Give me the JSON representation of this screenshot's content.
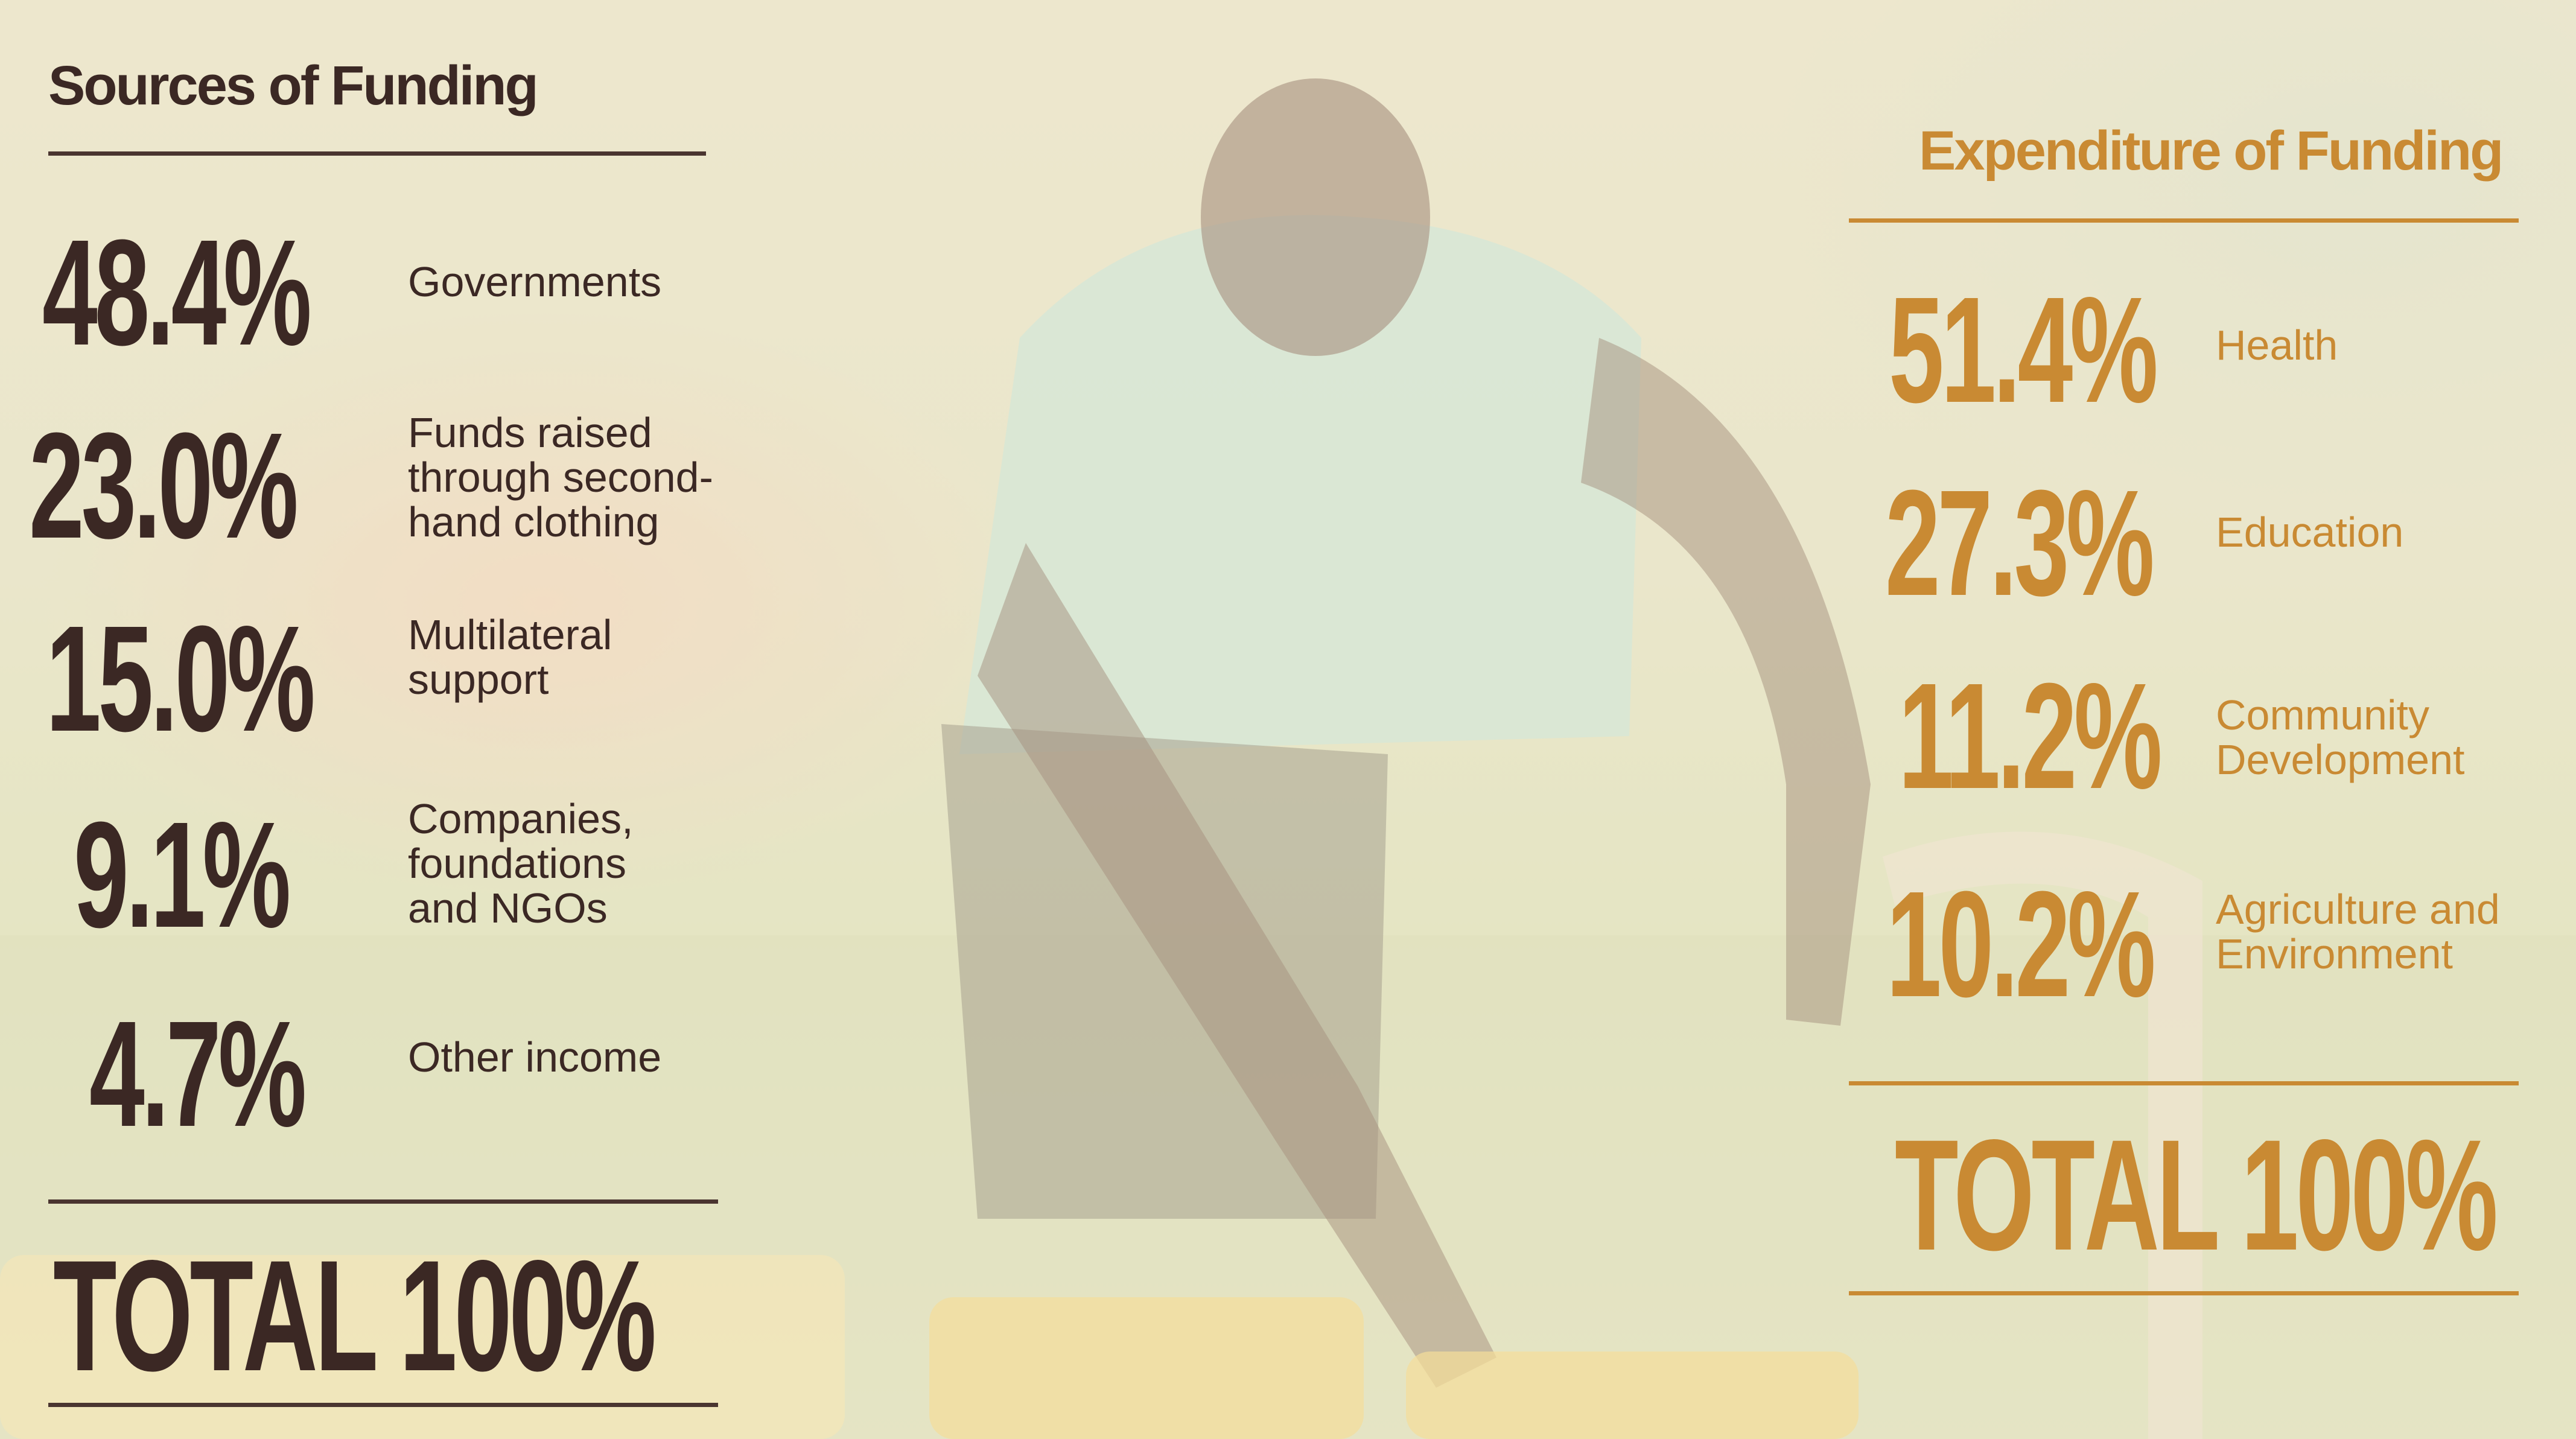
{
  "sources": {
    "heading": "Sources of Funding",
    "items": [
      {
        "value": "48.4%",
        "label": "Governments"
      },
      {
        "value": "23.0%",
        "label": "Funds raised\nthrough second-\nhand clothing"
      },
      {
        "value": "15.0%",
        "label": "Multilateral\nsupport"
      },
      {
        "value": "9.1%",
        "label": "Companies,\nfoundations\nand NGOs"
      },
      {
        "value": "4.7%",
        "label": "Other income"
      }
    ],
    "total": "TOTAL 100%"
  },
  "expenditure": {
    "heading": "Expenditure of Funding",
    "items": [
      {
        "value": "51.4%",
        "label": "Health"
      },
      {
        "value": "27.3%",
        "label": "Education"
      },
      {
        "value": "11.2%",
        "label": "Community\nDevelopment"
      },
      {
        "value": "10.2%",
        "label": "Agriculture and\nEnvironment"
      }
    ],
    "total": "TOTAL 100%"
  },
  "colors": {
    "left_text": "#3b2824",
    "right_accent": "#c98a33"
  }
}
